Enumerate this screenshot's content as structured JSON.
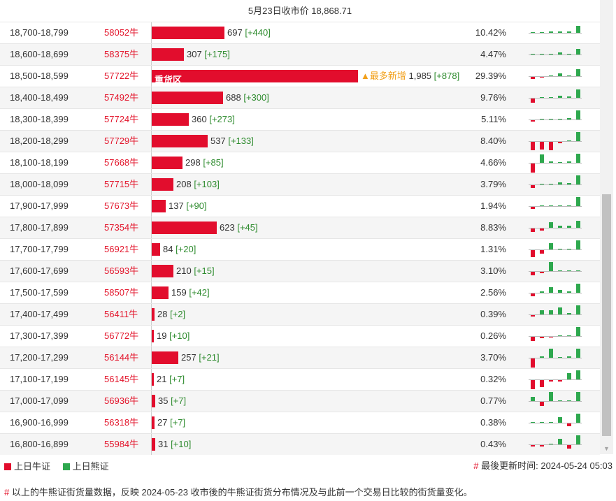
{
  "header": {
    "title": "5月23日收市价 18,868.71"
  },
  "colors": {
    "bull": "#e20d2d",
    "bear": "#2ea84e",
    "increment": "#2e8b2e",
    "flag": "#f2a01a"
  },
  "rows": [
    {
      "range": "18,700-18,799",
      "code": "58052牛",
      "value": "697",
      "inc": "[+440]",
      "pct": "10.42%",
      "bar_fraction": 0.351,
      "bar_label": "",
      "flag": "",
      "spark": [
        1,
        1,
        2,
        2,
        2,
        10
      ]
    },
    {
      "range": "18,600-18,699",
      "code": "58375牛",
      "value": "307",
      "inc": "[+175]",
      "pct": "4.47%",
      "bar_fraction": 0.155,
      "bar_label": "",
      "flag": "",
      "spark": [
        1,
        1,
        1,
        3,
        1,
        8
      ]
    },
    {
      "range": "18,500-18,599",
      "code": "57722牛",
      "value": "1,985",
      "inc": "[+878]",
      "pct": "29.39%",
      "bar_fraction": 1.0,
      "bar_label": "重货区",
      "flag": "▲最多新增",
      "spark": [
        -3,
        -1,
        1,
        4,
        0,
        10
      ]
    },
    {
      "range": "18,400-18,499",
      "code": "57492牛",
      "value": "688",
      "inc": "[+300]",
      "pct": "9.76%",
      "bar_fraction": 0.347,
      "bar_label": "",
      "flag": "",
      "spark": [
        -6,
        1,
        1,
        3,
        2,
        12
      ]
    },
    {
      "range": "18,300-18,399",
      "code": "57724牛",
      "value": "360",
      "inc": "[+273]",
      "pct": "5.11%",
      "bar_fraction": 0.181,
      "bar_label": "",
      "flag": "",
      "spark": [
        -2,
        1,
        1,
        1,
        2,
        13
      ]
    },
    {
      "range": "18,200-18,299",
      "code": "57729牛",
      "value": "537",
      "inc": "[+133]",
      "pct": "8.40%",
      "bar_fraction": 0.271,
      "bar_label": "",
      "flag": "",
      "spark": [
        -12,
        -11,
        -12,
        -2,
        0,
        13
      ]
    },
    {
      "range": "18,100-18,199",
      "code": "57668牛",
      "value": "298",
      "inc": "[+85]",
      "pct": "4.66%",
      "bar_fraction": 0.15,
      "bar_label": "",
      "flag": "",
      "spark": [
        -13,
        12,
        2,
        1,
        2,
        13
      ]
    },
    {
      "range": "18,000-18,099",
      "code": "57715牛",
      "value": "208",
      "inc": "[+103]",
      "pct": "3.79%",
      "bar_fraction": 0.105,
      "bar_label": "",
      "flag": "",
      "spark": [
        -4,
        1,
        1,
        3,
        2,
        13
      ]
    },
    {
      "range": "17,900-17,999",
      "code": "57673牛",
      "value": "137",
      "inc": "[+90]",
      "pct": "1.94%",
      "bar_fraction": 0.069,
      "bar_label": "",
      "flag": "",
      "spark": [
        -3,
        1,
        1,
        1,
        1,
        13
      ]
    },
    {
      "range": "17,800-17,899",
      "code": "57354牛",
      "value": "623",
      "inc": "[+45]",
      "pct": "8.83%",
      "bar_fraction": 0.314,
      "bar_label": "",
      "flag": "",
      "spark": [
        -5,
        -3,
        8,
        3,
        3,
        10
      ]
    },
    {
      "range": "17,700-17,799",
      "code": "56921牛",
      "value": "84",
      "inc": "[+20]",
      "pct": "1.31%",
      "bar_fraction": 0.042,
      "bar_label": "",
      "flag": "",
      "spark": [
        -10,
        -5,
        9,
        1,
        1,
        13
      ]
    },
    {
      "range": "17,600-17,699",
      "code": "56593牛",
      "value": "210",
      "inc": "[+15]",
      "pct": "3.10%",
      "bar_fraction": 0.106,
      "bar_label": "",
      "flag": "",
      "spark": [
        -5,
        -2,
        13,
        1,
        1,
        1
      ]
    },
    {
      "range": "17,500-17,599",
      "code": "58507牛",
      "value": "159",
      "inc": "[+42]",
      "pct": "2.56%",
      "bar_fraction": 0.08,
      "bar_label": "",
      "flag": "",
      "spark": [
        -4,
        2,
        8,
        4,
        2,
        13
      ]
    },
    {
      "range": "17,400-17,499",
      "code": "56411牛",
      "value": "28",
      "inc": "[+2]",
      "pct": "0.39%",
      "bar_fraction": 0.014,
      "bar_label": "",
      "flag": "",
      "spark": [
        -2,
        6,
        6,
        10,
        2,
        13
      ]
    },
    {
      "range": "17,300-17,399",
      "code": "56772牛",
      "value": "19",
      "inc": "[+10]",
      "pct": "0.26%",
      "bar_fraction": 0.01,
      "bar_label": "",
      "flag": "",
      "spark": [
        -6,
        -2,
        -1,
        1,
        1,
        13
      ]
    },
    {
      "range": "17,200-17,299",
      "code": "56144牛",
      "value": "257",
      "inc": "[+21]",
      "pct": "3.70%",
      "bar_fraction": 0.129,
      "bar_label": "",
      "flag": "",
      "spark": [
        -13,
        2,
        13,
        1,
        2,
        13
      ]
    },
    {
      "range": "17,100-17,199",
      "code": "56145牛",
      "value": "21",
      "inc": "[+7]",
      "pct": "0.32%",
      "bar_fraction": 0.011,
      "bar_label": "",
      "flag": "",
      "spark": [
        -13,
        -10,
        -2,
        -2,
        9,
        13
      ]
    },
    {
      "range": "17,000-17,099",
      "code": "56936牛",
      "value": "35",
      "inc": "[+7]",
      "pct": "0.77%",
      "bar_fraction": 0.018,
      "bar_label": "",
      "flag": "",
      "spark": [
        6,
        -6,
        13,
        1,
        1,
        13
      ]
    },
    {
      "range": "16,900-16,999",
      "code": "56318牛",
      "value": "27",
      "inc": "[+7]",
      "pct": "0.38%",
      "bar_fraction": 0.014,
      "bar_label": "",
      "flag": "",
      "spark": [
        0,
        0,
        0,
        8,
        -4,
        13
      ]
    },
    {
      "range": "16,800-16,899",
      "code": "55984牛",
      "value": "31",
      "inc": "[+10]",
      "pct": "0.43%",
      "bar_fraction": 0.016,
      "bar_label": "",
      "flag": "",
      "spark": [
        -2,
        -2,
        1,
        8,
        -5,
        13
      ]
    }
  ],
  "legend": {
    "bull_label": "上日牛证",
    "bear_label": "上日熊证"
  },
  "updated": {
    "hash": "#",
    "text": "最後更新时间: 2024-05-24 05:03"
  },
  "note": {
    "hash": "#",
    "text": "以上的牛熊证街货量数据，反映 2024-05-23 收市後的牛熊证街货分布情况及与此前一个交易日比较的街货量变化。"
  }
}
